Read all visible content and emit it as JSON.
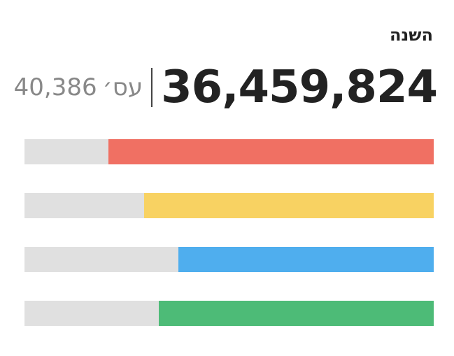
{
  "header": {
    "title": "השנה",
    "total_value": "36,459,824",
    "secondary_value": "40,386",
    "secondary_unit": "עס׳"
  },
  "bars": [
    {
      "fill_fraction": 0.795,
      "color": "#f07063"
    },
    {
      "fill_fraction": 0.708,
      "color": "#f8d262"
    },
    {
      "fill_fraction": 0.624,
      "color": "#4faeee"
    },
    {
      "fill_fraction": 0.672,
      "color": "#4dbb77"
    }
  ],
  "track_color": "#e0e0e0"
}
